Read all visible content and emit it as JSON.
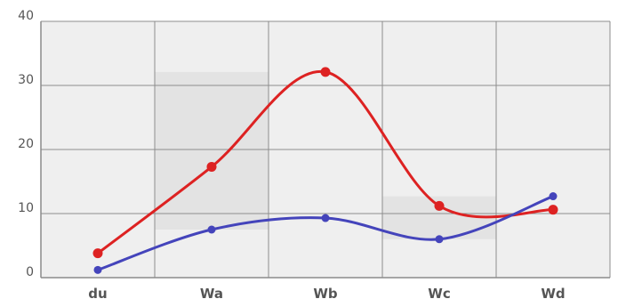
{
  "chart_data": {
    "type": "line",
    "title": "",
    "xlabel": "",
    "ylabel": "",
    "categories": [
      "du",
      "Wa",
      "Wb",
      "Wc",
      "Wd"
    ],
    "ylim": [
      0,
      40
    ],
    "yticks": [
      "0",
      "10",
      "20",
      "30",
      "40"
    ],
    "grid": true,
    "smooth": true,
    "series": [
      {
        "color": "#dd2222",
        "values": [
          3.8,
          17.3,
          32.1,
          11.2,
          10.6
        ]
      },
      {
        "color": "#4444bb",
        "values": [
          1.2,
          7.5,
          9.3,
          6.0,
          12.7
        ]
      }
    ],
    "colors": {
      "background": "#efefef",
      "grid": "#8c8c8c",
      "band": "#e3e3e3"
    }
  }
}
